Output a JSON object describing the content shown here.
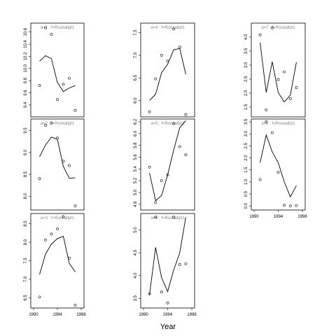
{
  "xlabel": "Year",
  "chart_data": [
    {
      "type": "scatter",
      "strip": "a=1  :  f=Rockallpt1",
      "xlim": [
        1990,
        1998
      ],
      "ylim": [
        9.25,
        10.7
      ],
      "yticks": [
        9.4,
        9.6,
        9.8,
        10.0,
        10.2,
        10.4,
        10.6
      ],
      "xticks": [],
      "points": {
        "x": [
          1991,
          1992,
          1993,
          1994,
          1995,
          1996,
          1997
        ],
        "y": [
          9.72,
          10.67,
          10.56,
          9.49,
          9.74,
          9.84,
          9.31
        ]
      },
      "fit": {
        "x": [
          1991,
          1992,
          1993,
          1994,
          1995,
          1996,
          1997
        ],
        "y": [
          10.12,
          10.21,
          10.16,
          9.77,
          9.62,
          9.68,
          9.72
        ]
      }
    },
    {
      "type": "scatter",
      "strip": "a=4  :  f=Rockallpt1",
      "xlim": [
        1990,
        1998
      ],
      "ylim": [
        5.7,
        7.65
      ],
      "yticks": [
        6.0,
        6.5,
        7.0,
        7.5
      ],
      "xticks": [],
      "points": {
        "x": [
          1991,
          1992,
          1993,
          1994,
          1995,
          1996,
          1997
        ],
        "y": [
          5.75,
          6.48,
          7.0,
          6.87,
          7.58,
          7.18,
          5.69
        ]
      },
      "fit": {
        "x": [
          1991,
          1992,
          1993,
          1994,
          1995,
          1996,
          1997
        ],
        "y": [
          6.0,
          6.14,
          6.62,
          6.8,
          7.12,
          7.15,
          6.58
        ]
      }
    },
    {
      "type": "scatter",
      "strip": "a=7  :  f=Rockallpt1",
      "xlim": [
        1990,
        1998
      ],
      "ylim": [
        1.25,
        4.4
      ],
      "yticks": [
        1.5,
        2.0,
        2.5,
        3.0,
        3.5,
        4.0
      ],
      "xticks": [],
      "points": {
        "x": [
          1991,
          1992,
          1993,
          1994,
          1995,
          1996,
          1997
        ],
        "y": [
          4.08,
          1.4,
          4.33,
          2.48,
          2.76,
          1.8,
          2.2
        ]
      },
      "fit": {
        "x": [
          1991,
          1992,
          1993,
          1994,
          1995,
          1996,
          1997
        ],
        "y": [
          3.8,
          2.02,
          3.12,
          2.02,
          1.68,
          1.93,
          3.1
        ]
      }
    },
    {
      "type": "scatter",
      "strip": "a=2  :  f=Rockallpt1",
      "xlim": [
        1990,
        1998
      ],
      "ylim": [
        7.75,
        9.7
      ],
      "yticks": [
        8.0,
        8.5,
        9.0,
        9.5
      ],
      "xticks": [],
      "points": {
        "x": [
          1991,
          1992,
          1993,
          1994,
          1995,
          1996,
          1997
        ],
        "y": [
          8.4,
          9.62,
          9.67,
          9.33,
          8.8,
          8.7,
          7.78
        ]
      },
      "fit": {
        "x": [
          1991,
          1992,
          1993,
          1994,
          1995,
          1996,
          1997
        ],
        "y": [
          8.9,
          9.17,
          9.35,
          9.3,
          8.68,
          8.41,
          8.42
        ]
      }
    },
    {
      "type": "scatter",
      "strip": "a=5  :  f=Rockallpt1",
      "xlim": [
        1990,
        1998
      ],
      "ylim": [
        4.75,
        6.2
      ],
      "yticks": [
        4.8,
        5.0,
        5.2,
        5.4,
        5.6,
        5.8,
        6.0,
        6.2
      ],
      "xticks": [],
      "points": {
        "x": [
          1991,
          1992,
          1993,
          1994,
          1995,
          1996,
          1997
        ],
        "y": [
          5.43,
          4.83,
          5.2,
          5.3,
          6.17,
          5.78,
          5.64
        ]
      },
      "fit": {
        "x": [
          1991,
          1992,
          1993,
          1994,
          1995,
          1996,
          1997
        ],
        "y": [
          5.33,
          4.86,
          4.95,
          5.3,
          5.72,
          6.1,
          6.22
        ]
      }
    },
    {
      "type": "scatter",
      "strip": "a=8  :  f=Rockallpt1",
      "xlim": [
        1990,
        1998
      ],
      "ylim": [
        -0.05,
        3.5
      ],
      "yticks": [
        0.0,
        0.5,
        1.0,
        1.5,
        2.0,
        2.5,
        3.0,
        3.5
      ],
      "xticks": [
        1990,
        1994,
        1998
      ],
      "points": {
        "x": [
          1991,
          1992,
          1993,
          1994,
          1995,
          1996,
          1997
        ],
        "y": [
          1.1,
          3.5,
          3.05,
          1.4,
          0.03,
          0.0,
          0.02
        ]
      },
      "fit": {
        "x": [
          1991,
          1992,
          1993,
          1994,
          1995,
          1996,
          1997
        ],
        "y": [
          1.8,
          2.95,
          2.25,
          1.8,
          1.0,
          0.38,
          0.85
        ]
      }
    },
    {
      "type": "scatter",
      "strip": "a=3  :  f=Rockallpt1",
      "xlim": [
        1990,
        1998
      ],
      "ylim": [
        6.3,
        8.7
      ],
      "yticks": [
        6.5,
        7.0,
        7.5,
        8.0,
        8.5
      ],
      "xticks": [
        1990,
        1994,
        1998
      ],
      "points": {
        "x": [
          1991,
          1992,
          1993,
          1994,
          1995,
          1996,
          1997
        ],
        "y": [
          6.52,
          8.06,
          8.22,
          8.36,
          8.69,
          7.57,
          6.3
        ]
      },
      "fit": {
        "x": [
          1991,
          1992,
          1993,
          1994,
          1995,
          1996,
          1997
        ],
        "y": [
          7.13,
          7.68,
          7.95,
          8.1,
          8.16,
          7.43,
          7.2
        ]
      }
    },
    {
      "type": "scatter",
      "strip": "a=6  :  f=Rockallpt1",
      "xlim": [
        1990,
        1998
      ],
      "ylim": [
        3.35,
        5.3
      ],
      "yticks": [
        3.5,
        4.0,
        4.5,
        5.0
      ],
      "xticks": [
        1990,
        1994,
        1998
      ],
      "points": {
        "x": [
          1991,
          1992,
          1993,
          1994,
          1995,
          1996,
          1997
        ],
        "y": [
          3.6,
          5.28,
          3.64,
          3.4,
          5.28,
          4.24,
          4.26
        ]
      },
      "fit": {
        "x": [
          1991,
          1992,
          1993,
          1994,
          1995,
          1996,
          1997
        ],
        "y": [
          3.58,
          4.62,
          3.95,
          3.65,
          4.12,
          4.5,
          5.28
        ]
      }
    }
  ]
}
